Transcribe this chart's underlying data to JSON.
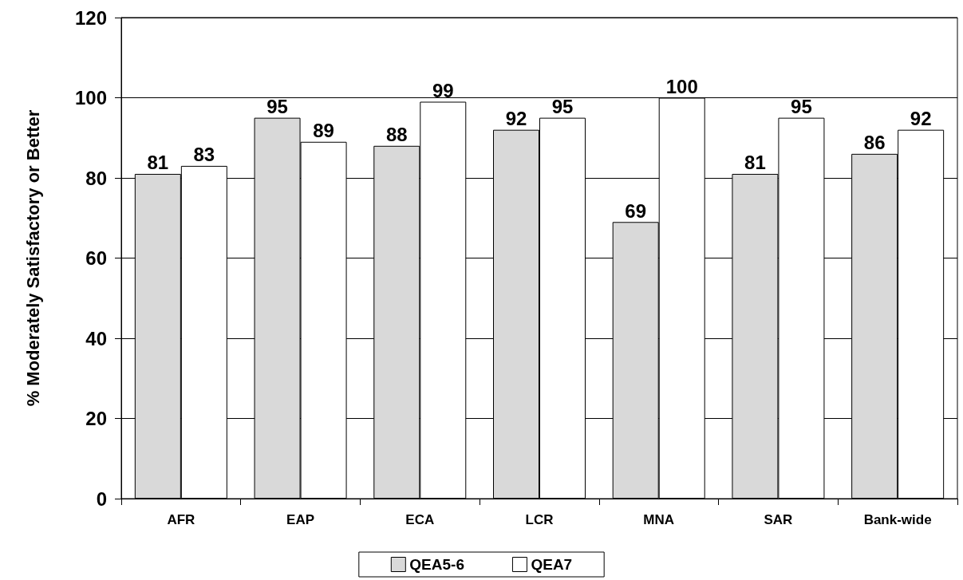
{
  "chart_data": {
    "type": "bar",
    "ylabel": "% Moderately Satisfactory or Better",
    "categories": [
      "AFR",
      "EAP",
      "ECA",
      "LCR",
      "MNA",
      "SAR",
      "Bank-wide"
    ],
    "series": [
      {
        "name": "QEA5-6",
        "color": "#d9d9d9",
        "values": [
          81,
          95,
          88,
          92,
          69,
          81,
          86
        ]
      },
      {
        "name": "QEA7",
        "color": "#ffffff",
        "values": [
          83,
          89,
          99,
          95,
          100,
          95,
          92
        ]
      }
    ],
    "ylim": [
      0,
      120
    ],
    "yticks": [
      0,
      20,
      40,
      60,
      80,
      100,
      120
    ],
    "grid": "y",
    "legend": "bottom",
    "data_labels": true
  }
}
